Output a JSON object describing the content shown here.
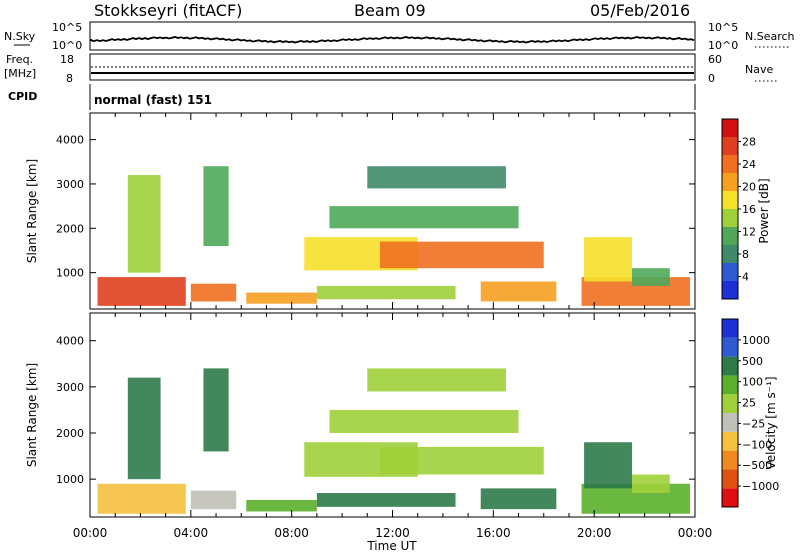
{
  "header": {
    "station": "Stokkseyri (fitACF)",
    "beam": "Beam 09",
    "date": "05/Feb/2016"
  },
  "panels": {
    "nsky": {
      "left_label": "N.Sky",
      "right_label": "N.Search",
      "left_ticks": [
        "10^5",
        "10^0"
      ],
      "right_ticks": [
        "10^5",
        "10^0"
      ]
    },
    "freq": {
      "left_label_1": "Freq.",
      "left_label_2": "[MHz]",
      "right_label": "Nave",
      "left_ticks": [
        "18",
        "8"
      ],
      "right_ticks": [
        "60",
        "0"
      ]
    },
    "cpid": {
      "label": "CPID",
      "value": "normal (fast) 151"
    }
  },
  "colors": {
    "power": [
      "#1f2fd6",
      "#2f5bd0",
      "#3f8a6a",
      "#4fa85a",
      "#9fd03a",
      "#f5e02a",
      "#f5a020",
      "#f07020",
      "#e04020",
      "#d01010"
    ],
    "velocity": [
      "#1f2fd6",
      "#2f5bd0",
      "#2f7a4a",
      "#5ab02a",
      "#9fd03a",
      "#c0c0b8",
      "#f5c040",
      "#f08a20",
      "#e05010",
      "#e01010"
    ]
  },
  "chart_data": [
    {
      "type": "heatmap",
      "name": "power",
      "xlabel": "Time UT",
      "ylabel": "Slant Range [km]",
      "xlim": [
        0,
        24
      ],
      "ylim": [
        180,
        4600
      ],
      "x_ticks": [
        "00:00",
        "04:00",
        "08:00",
        "12:00",
        "16:00",
        "20:00",
        "00:00"
      ],
      "y_ticks": [
        1000,
        2000,
        3000,
        4000
      ],
      "colorbar": {
        "label": "Power [dB]",
        "ticks": [
          "4",
          "8",
          "12",
          "16",
          "20",
          "24",
          "28"
        ]
      },
      "regions": [
        {
          "t0": 0.3,
          "t1": 3.8,
          "r0": 250,
          "r1": 900,
          "level": 8
        },
        {
          "t0": 4.0,
          "t1": 5.8,
          "r0": 350,
          "r1": 750,
          "level": 7
        },
        {
          "t0": 6.2,
          "t1": 9.0,
          "r0": 300,
          "r1": 550,
          "level": 6
        },
        {
          "t0": 9.0,
          "t1": 14.5,
          "r0": 400,
          "r1": 700,
          "level": 4
        },
        {
          "t0": 15.5,
          "t1": 18.5,
          "r0": 350,
          "r1": 800,
          "level": 6
        },
        {
          "t0": 19.5,
          "t1": 23.8,
          "r0": 250,
          "r1": 900,
          "level": 7
        },
        {
          "t0": 8.5,
          "t1": 13.0,
          "r0": 1050,
          "r1": 1800,
          "level": 5
        },
        {
          "t0": 11.5,
          "t1": 18.0,
          "r0": 1100,
          "r1": 1700,
          "level": 7
        },
        {
          "t0": 9.5,
          "t1": 17.0,
          "r0": 2000,
          "r1": 2500,
          "level": 3
        },
        {
          "t0": 11.0,
          "t1": 16.5,
          "r0": 2900,
          "r1": 3400,
          "level": 2
        },
        {
          "t0": 1.5,
          "t1": 2.8,
          "r0": 1000,
          "r1": 3200,
          "level": 4
        },
        {
          "t0": 4.5,
          "t1": 5.5,
          "r0": 1600,
          "r1": 3400,
          "level": 3
        },
        {
          "t0": 19.6,
          "t1": 21.5,
          "r0": 800,
          "r1": 1800,
          "level": 5
        },
        {
          "t0": 21.5,
          "t1": 23.0,
          "r0": 700,
          "r1": 1100,
          "level": 3
        }
      ]
    },
    {
      "type": "heatmap",
      "name": "velocity",
      "xlabel": "Time UT",
      "ylabel": "Slant Range [km]",
      "xlim": [
        0,
        24
      ],
      "ylim": [
        180,
        4600
      ],
      "x_ticks": [
        "00:00",
        "04:00",
        "08:00",
        "12:00",
        "16:00",
        "20:00",
        "00:00"
      ],
      "y_ticks": [
        1000,
        2000,
        3000,
        4000
      ],
      "colorbar": {
        "label": "Velocity [m s⁻¹]",
        "ticks": [
          "1000",
          "500",
          "100",
          "25",
          "−25",
          "−100",
          "−500",
          "−1000"
        ]
      },
      "regions": [
        {
          "t0": 0.3,
          "t1": 3.8,
          "r0": 250,
          "r1": 900,
          "level": 3
        },
        {
          "t0": 4.0,
          "t1": 5.8,
          "r0": 350,
          "r1": 750,
          "level": 4
        },
        {
          "t0": 6.2,
          "t1": 9.0,
          "r0": 300,
          "r1": 550,
          "level": 6
        },
        {
          "t0": 9.0,
          "t1": 14.5,
          "r0": 400,
          "r1": 700,
          "level": 7
        },
        {
          "t0": 15.5,
          "t1": 18.5,
          "r0": 350,
          "r1": 800,
          "level": 7
        },
        {
          "t0": 19.5,
          "t1": 23.8,
          "r0": 250,
          "r1": 900,
          "level": 6
        },
        {
          "t0": 8.5,
          "t1": 13.0,
          "r0": 1050,
          "r1": 1800,
          "level": 5
        },
        {
          "t0": 11.5,
          "t1": 18.0,
          "r0": 1100,
          "r1": 1700,
          "level": 5
        },
        {
          "t0": 9.5,
          "t1": 17.0,
          "r0": 2000,
          "r1": 2500,
          "level": 5
        },
        {
          "t0": 11.0,
          "t1": 16.5,
          "r0": 2900,
          "r1": 3400,
          "level": 5
        },
        {
          "t0": 1.5,
          "t1": 2.8,
          "r0": 1000,
          "r1": 3200,
          "level": 7
        },
        {
          "t0": 4.5,
          "t1": 5.5,
          "r0": 1600,
          "r1": 3400,
          "level": 7
        },
        {
          "t0": 19.6,
          "t1": 21.5,
          "r0": 800,
          "r1": 1800,
          "level": 7
        },
        {
          "t0": 21.5,
          "t1": 23.0,
          "r0": 700,
          "r1": 1100,
          "level": 5
        }
      ]
    }
  ]
}
